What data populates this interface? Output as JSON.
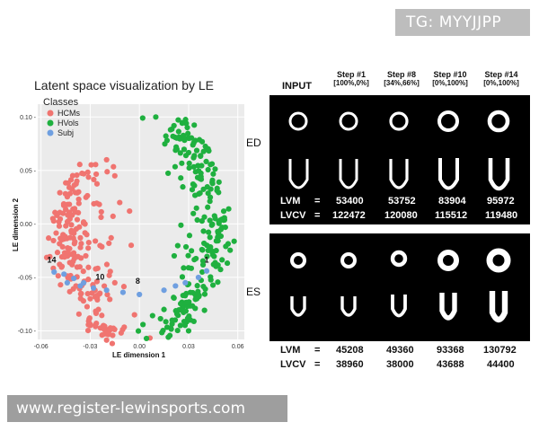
{
  "tag": "TG: MYYJJPP",
  "watermark": "www.register-lewinsports.com",
  "chart_data": {
    "type": "scatter",
    "title": "Latent space visualization by LE",
    "xlabel": "LE dimension 1",
    "ylabel": "LE dimension 2",
    "xlim": [
      -0.062,
      0.064
    ],
    "ylim": [
      -0.108,
      0.112
    ],
    "xticks": [
      -0.06,
      -0.03,
      0.0,
      0.03,
      0.06
    ],
    "xtick_labels": [
      "-0.06",
      "-0.03",
      "0.00",
      "0.03",
      "0.06"
    ],
    "yticks": [
      0.1,
      0.05,
      0.0,
      -0.05,
      -0.1
    ],
    "ytick_labels": [
      "0.10 -",
      "0.05 -",
      "0.00 -",
      "-0.05 -",
      "-0.10 -"
    ],
    "grid": true,
    "legend_title": "Classes",
    "legend_position": "top-left",
    "series": [
      {
        "name": "HCMs",
        "color": "#f07470"
      },
      {
        "name": "HVols",
        "color": "#1fb03f"
      },
      {
        "name": "Subj",
        "color": "#6f9fe0"
      }
    ],
    "annotations": [
      {
        "text": "14",
        "x": -0.0535,
        "y": -0.036
      },
      {
        "text": "10",
        "x": -0.024,
        "y": -0.052
      },
      {
        "text": "8",
        "x": -0.001,
        "y": -0.056
      },
      {
        "text": "1",
        "x": 0.041,
        "y": -0.036
      }
    ],
    "subj_points": [
      [
        -0.052,
        -0.045
      ],
      [
        -0.046,
        -0.047
      ],
      [
        -0.04,
        -0.051
      ],
      [
        -0.034,
        -0.055
      ],
      [
        -0.028,
        -0.06
      ],
      [
        -0.02,
        -0.062
      ],
      [
        -0.01,
        -0.064
      ],
      [
        0.0,
        -0.066
      ],
      [
        0.015,
        -0.062
      ],
      [
        0.028,
        -0.055
      ],
      [
        0.036,
        -0.05
      ],
      [
        0.041,
        -0.044
      ],
      [
        -0.044,
        -0.055
      ],
      [
        -0.036,
        -0.058
      ],
      [
        0.022,
        -0.058
      ]
    ],
    "hcm_seed": 11,
    "hvol_seed": 23,
    "hcm_count": 210,
    "hvol_count": 230
  },
  "figure": {
    "input_label": "INPUT",
    "steps": [
      {
        "step": "Step #1",
        "ratio": "[100%,0%]"
      },
      {
        "step": "Step #8",
        "ratio": "[34%,66%]"
      },
      {
        "step": "Step #10",
        "ratio": "[0%,100%]"
      },
      {
        "step": "Step #14",
        "ratio": "[0%,100%]"
      }
    ],
    "ed_label": "ED",
    "es_label": "ES",
    "ed_metrics": {
      "lvm_label": "LVM",
      "lvcv_label": "LVCV",
      "eq": "=",
      "lvm": [
        "53400",
        "53752",
        "83904",
        "95972"
      ],
      "lvcv": [
        "122472",
        "120080",
        "115512",
        "119480"
      ]
    },
    "es_metrics": {
      "lvm_label": "LVM",
      "lvcv_label": "LVCV",
      "eq": "=",
      "lvm": [
        "45208",
        "49360",
        "93368",
        "130792"
      ],
      "lvcv": [
        "38960",
        "38000",
        "43688",
        "44400"
      ]
    }
  }
}
